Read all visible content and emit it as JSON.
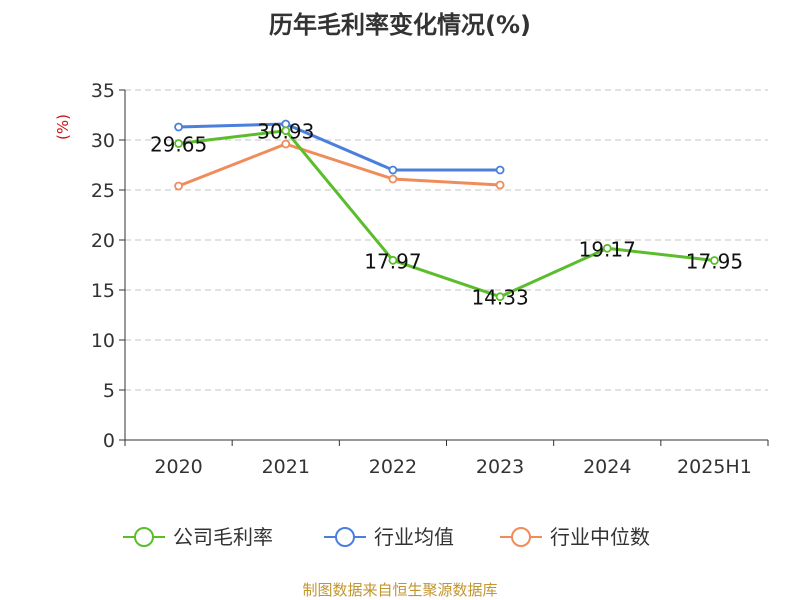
{
  "chart_data": {
    "type": "line",
    "title": "历年毛利率变化情况(%)",
    "ylabel": "(%)",
    "xlabel": "",
    "categories": [
      "2020",
      "2021",
      "2022",
      "2023",
      "2024",
      "2025H1"
    ],
    "ylim": [
      0,
      35
    ],
    "yticks": [
      0,
      5,
      10,
      15,
      20,
      25,
      30,
      35
    ],
    "grid": true,
    "legend_position": "bottom",
    "series": [
      {
        "name": "公司毛利率",
        "color": "#5bbd2b",
        "values": [
          29.65,
          30.93,
          17.97,
          14.33,
          19.17,
          17.95
        ],
        "labels": [
          "29.65",
          "30.93",
          "17.97",
          "14.33",
          "19.17",
          "17.95"
        ]
      },
      {
        "name": "行业均值",
        "color": "#4a7fdc",
        "values": [
          31.3,
          31.6,
          27.0,
          27.0,
          null,
          null
        ]
      },
      {
        "name": "行业中位数",
        "color": "#f08c5a",
        "values": [
          25.4,
          29.6,
          26.1,
          25.5,
          null,
          null
        ]
      }
    ],
    "source": "制图数据来自恒生聚源数据库"
  }
}
